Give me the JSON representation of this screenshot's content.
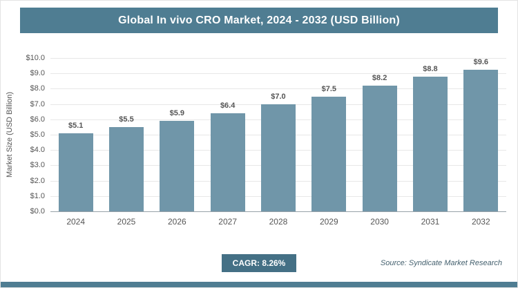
{
  "title": "Global In vivo CRO Market, 2024 - 2032 (USD Billion)",
  "chart_data": {
    "type": "bar",
    "title": "Global In vivo CRO Market, 2024 - 2032 (USD Billion)",
    "categories": [
      "2024",
      "2025",
      "2026",
      "2027",
      "2028",
      "2029",
      "2030",
      "2031",
      "2032"
    ],
    "values": [
      5.1,
      5.5,
      5.9,
      6.4,
      7.0,
      7.5,
      8.2,
      8.8,
      9.6
    ],
    "value_labels": [
      "$5.1",
      "$5.5",
      "$5.9",
      "$6.4",
      "$7.0",
      "$7.5",
      "$8.2",
      "$8.8",
      "$9.6"
    ],
    "xlabel": "",
    "ylabel": "Market Size (USD Billion)",
    "ylim": [
      0,
      10
    ],
    "ytick_labels": [
      "$10.0",
      "$9.0",
      "$8.0",
      "$7.0",
      "$6.0",
      "$5.0",
      "$4.0",
      "$3.0",
      "$2.0",
      "$1.0",
      "$0.0"
    ],
    "grid": true,
    "legend": "none",
    "bar_color": "#7096a9"
  },
  "footer": {
    "cagr_label": "CAGR: 8.26%",
    "source": "Source: Syndicate Market Research"
  },
  "colors": {
    "accent": "#4f7d92",
    "badge": "#447085",
    "bar": "#7096a9",
    "gridline": "#e7e7e7"
  }
}
